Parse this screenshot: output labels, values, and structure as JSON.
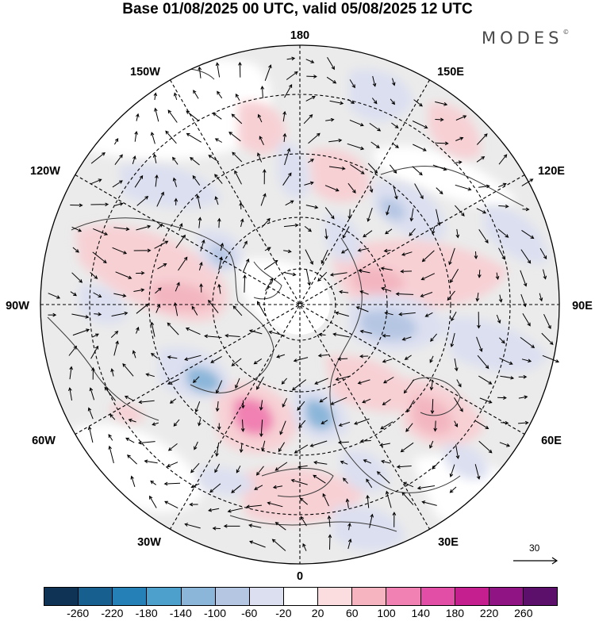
{
  "header": {
    "title": "Base 01/08/2025 00 UTC, valid 05/08/2025 12 UTC",
    "brand": "MODES",
    "brand_mark": "©"
  },
  "map": {
    "projection": "north-polar-stereographic",
    "field": "height anomaly with wind vectors",
    "labels": {
      "top": "180",
      "bottom": "0",
      "left": "90W",
      "right": "90E",
      "upper_left_1": "150W",
      "upper_left_2": "120W",
      "lower_left_1": "60W",
      "lower_left_2": "30W",
      "upper_right_1": "150E",
      "upper_right_2": "120E",
      "lower_right_1": "60E",
      "lower_right_2": "30E"
    },
    "vector_reference": {
      "value": "30"
    }
  },
  "colorbar": {
    "colors": [
      "#0e3354",
      "#165f8e",
      "#2580b8",
      "#4d9fcc",
      "#8bb6d9",
      "#b5c6e3",
      "#dcdff0",
      "#ffffff",
      "#fbdde0",
      "#f6b3c0",
      "#f081b2",
      "#e24ea5",
      "#c41e8f",
      "#901483",
      "#5c0f6b"
    ],
    "tick_labels": [
      "-260",
      "-220",
      "-180",
      "-140",
      "-100",
      "-60",
      "-20",
      "20",
      "60",
      "100",
      "140",
      "180",
      "220",
      "260"
    ]
  }
}
